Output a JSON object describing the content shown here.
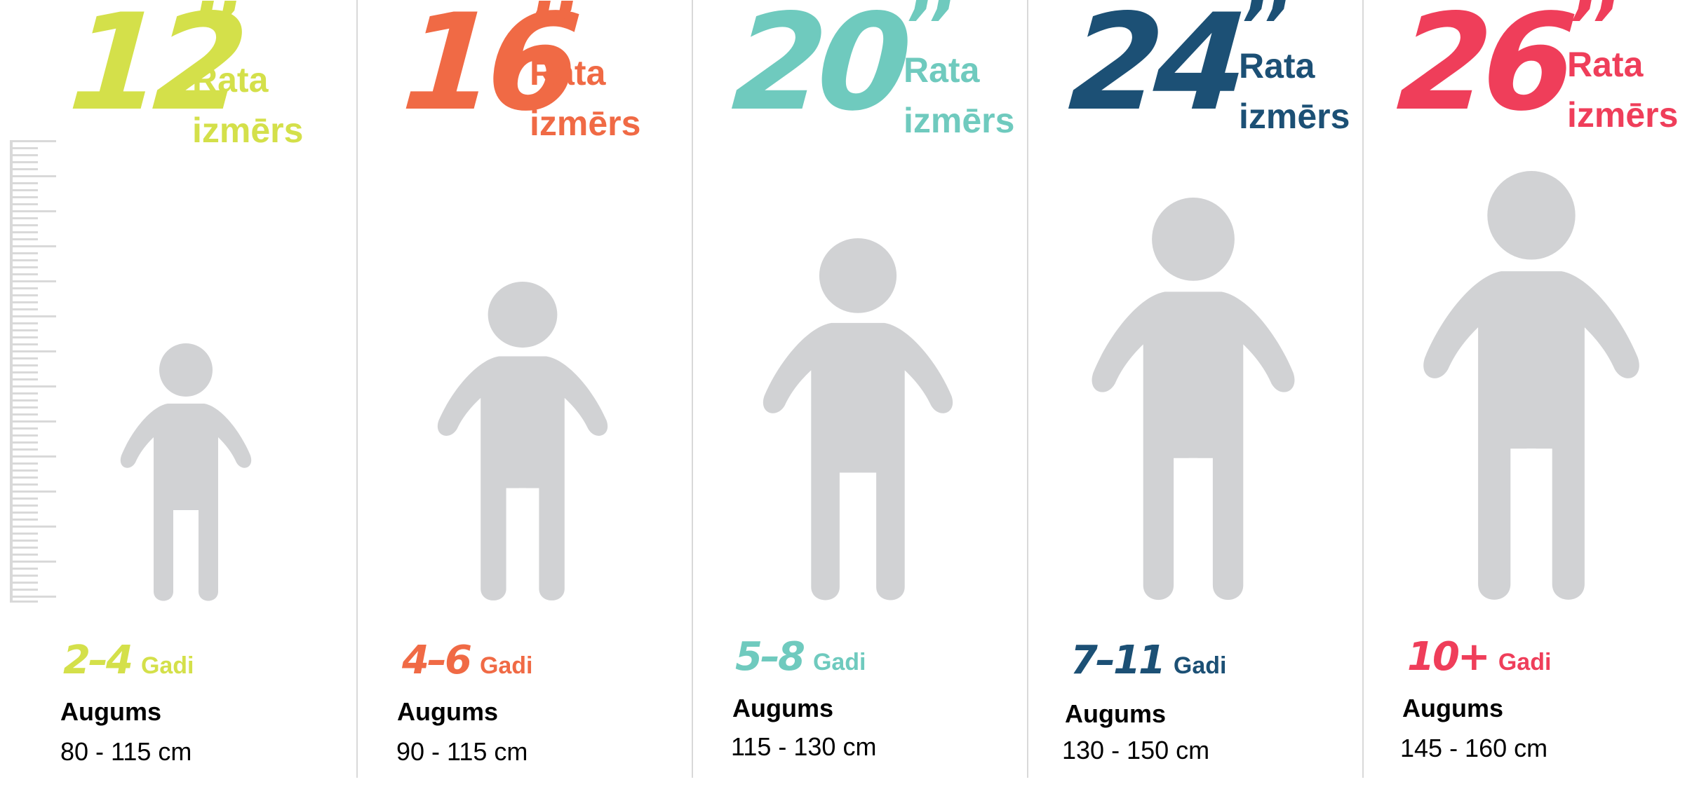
{
  "columns": [
    {
      "wheel_size": "12",
      "inch_mark": "’’",
      "size_label_line1": "Rata",
      "size_label_line2": "izmērs",
      "age_range": "2–4",
      "age_word": "Gadi",
      "height_label": "Augums",
      "height_range": "80 - 115 cm",
      "color": "#d4e04a"
    },
    {
      "wheel_size": "16",
      "inch_mark": "’’",
      "size_label_line1": "Rata",
      "size_label_line2": "izmērs",
      "age_range": "4–6",
      "age_word": "Gadi",
      "height_label": "Augums",
      "height_range": "90 - 115 cm",
      "color": "#f06a45"
    },
    {
      "wheel_size": "20",
      "inch_mark": "’’",
      "size_label_line1": "Rata",
      "size_label_line2": "izmērs",
      "age_range": "5–8",
      "age_word": "Gadi",
      "height_label": "Augums",
      "height_range": "115 - 130 cm",
      "color": "#6fcabe"
    },
    {
      "wheel_size": "24",
      "inch_mark": "’’",
      "size_label_line1": "Rata",
      "size_label_line2": "izmērs",
      "age_range": "7–11",
      "age_word": "Gadi",
      "height_label": "Augums",
      "height_range": "130 - 150 cm",
      "color": "#1c5075"
    },
    {
      "wheel_size": "26",
      "inch_mark": "’’",
      "size_label_line1": "Rata",
      "size_label_line2": "izmērs",
      "age_range": "10+",
      "age_word": "Gadi",
      "height_label": "Augums",
      "height_range": "145 - 160 cm",
      "color": "#ef3e5a"
    }
  ],
  "figure_color": "#d1d2d4",
  "ruler_color": "#d9d9d9",
  "divider_color": "#d9d9d9",
  "icons": {
    "figure": "child-silhouette-icon",
    "ruler": "height-ruler-icon"
  }
}
